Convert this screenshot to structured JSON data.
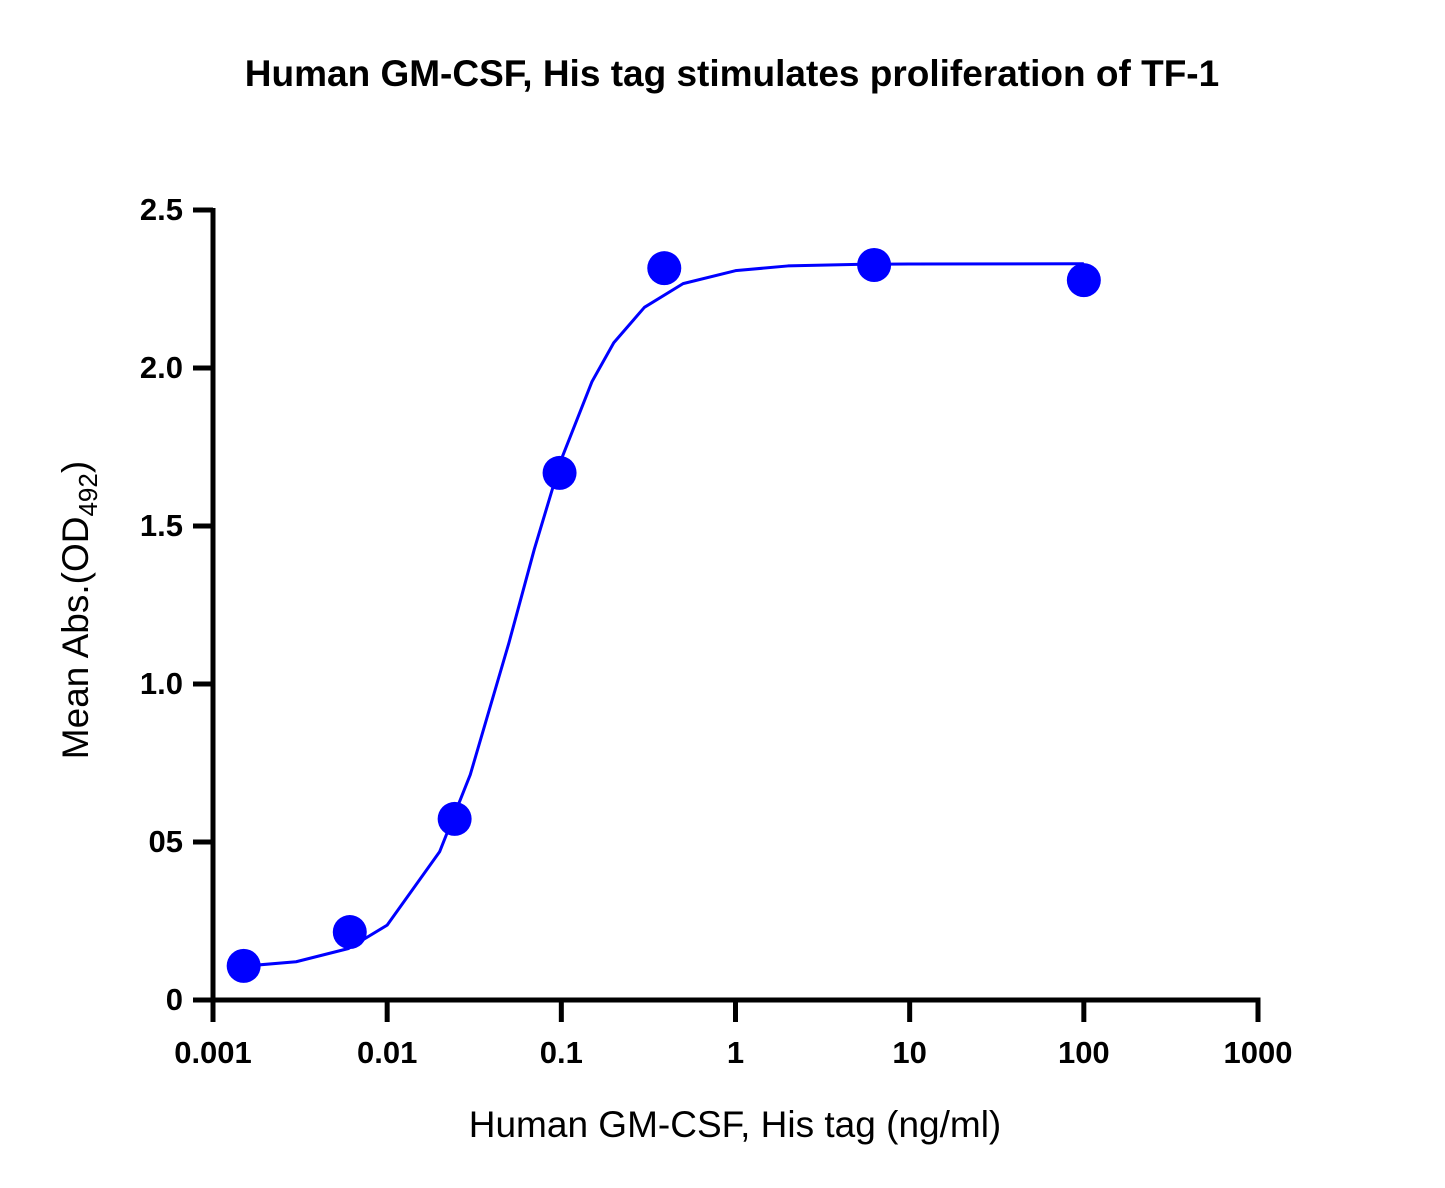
{
  "chart_data": {
    "type": "scatter",
    "title": "Human GM-CSF, His tag stimulates proliferation of TF-1",
    "x_label": "Human GM-CSF, His tag (ng/ml)",
    "y_label": "Mean Abs.(OD",
    "y_label_sub": "492",
    "y_label_end": ")",
    "x_scale": "log",
    "xlim": [
      0.001,
      1000
    ],
    "xticks": [
      0.001,
      0.01,
      0.1,
      1,
      10,
      100,
      1000
    ],
    "ylim": [
      0,
      2.5
    ],
    "yticks": [
      0,
      {
        "value": 0.5,
        "label": "05"
      },
      {
        "value": 1,
        "label": "1.0"
      },
      1.5,
      {
        "value": 2,
        "label": "2.0"
      },
      2.5
    ],
    "points": {
      "color": "#0000ff",
      "x": [
        0.0015,
        0.0061,
        0.0244,
        0.0977,
        0.39,
        6.25,
        100
      ],
      "values": [
        0.108,
        0.215,
        0.573,
        1.668,
        2.316,
        2.326,
        2.278
      ]
    },
    "fit": {
      "color": "#0000ff",
      "x": [
        0.0015,
        0.003,
        0.006,
        0.01,
        0.02,
        0.03,
        0.05,
        0.07,
        0.1,
        0.15,
        0.2,
        0.3,
        0.5,
        1,
        2,
        5,
        10,
        100
      ],
      "values": [
        0.107,
        0.121,
        0.163,
        0.237,
        0.469,
        0.713,
        1.13,
        1.427,
        1.711,
        1.957,
        2.08,
        2.192,
        2.267,
        2.308,
        2.323,
        2.328,
        2.329,
        2.33
      ]
    }
  }
}
